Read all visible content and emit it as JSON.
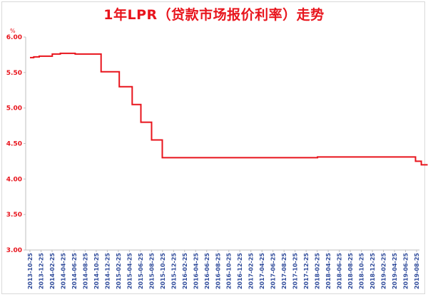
{
  "chart_data": {
    "type": "line",
    "title": "1年LPR（贷款市场报价利率）走势",
    "y_unit": "%",
    "ylim": [
      3.0,
      6.0
    ],
    "yticks": [
      "3.00",
      "3.50",
      "4.00",
      "4.50",
      "5.00",
      "5.50",
      "6.00"
    ],
    "x_tick_labels": [
      "2013-10-25",
      "2013-12-25",
      "2014-02-25",
      "2014-04-25",
      "2014-06-25",
      "2014-08-25",
      "2014-10-25",
      "2014-12-25",
      "2015-02-25",
      "2015-04-25",
      "2015-06-25",
      "2015-08-25",
      "2015-10-25",
      "2015-12-25",
      "2016-02-25",
      "2016-04-25",
      "2016-06-25",
      "2016-08-25",
      "2016-10-25",
      "2016-12-25",
      "2017-02-25",
      "2017-04-25",
      "2017-06-25",
      "2017-08-25",
      "2017-10-25",
      "2017-12-25",
      "2018-02-25",
      "2018-04-25",
      "2018-06-25",
      "2018-08-25",
      "2018-10-25",
      "2018-12-25",
      "2019-02-25",
      "2019-04-25",
      "2019-06-25",
      "2019-08-25"
    ],
    "series": [
      {
        "color": "#e8141c",
        "step": true,
        "points": [
          [
            "2013-10-25",
            5.71
          ],
          [
            "2013-11-15",
            5.72
          ],
          [
            "2013-12-15",
            5.73
          ],
          [
            "2014-02-25",
            5.76
          ],
          [
            "2014-04-10",
            5.77
          ],
          [
            "2014-07-01",
            5.76
          ],
          [
            "2014-11-21",
            5.51
          ],
          [
            "2015-03-01",
            5.3
          ],
          [
            "2015-05-11",
            5.05
          ],
          [
            "2015-06-28",
            4.8
          ],
          [
            "2015-08-26",
            4.55
          ],
          [
            "2015-10-24",
            4.3
          ],
          [
            "2018-02-25",
            4.31
          ],
          [
            "2019-08-19",
            4.25
          ],
          [
            "2019-08-25",
            4.25
          ],
          [
            "2019-09-20",
            4.2
          ],
          [
            "2019-10-25",
            4.2
          ]
        ]
      }
    ],
    "grid": false,
    "legend": "none"
  }
}
